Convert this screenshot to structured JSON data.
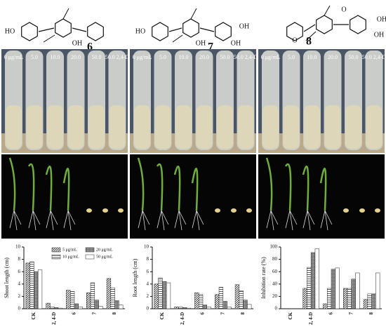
{
  "structures": [
    {
      "number": "6",
      "labels": [
        "HO",
        "OH"
      ]
    },
    {
      "number": "7",
      "labels": [
        "HO",
        "OH",
        "OH",
        "OH"
      ]
    },
    {
      "number": "8",
      "labels": [
        "O",
        "OH",
        "OH",
        "O"
      ]
    }
  ],
  "tubes": {
    "labels": [
      "0 μg/mL",
      "5.0",
      "10.0",
      "20.0",
      "50.0",
      "50.0 2,4-D"
    ]
  },
  "chart_data": [
    {
      "type": "bar",
      "ylabel": "Shoot length (cm)",
      "categories": [
        "CK",
        "2, 4-D",
        "6",
        "7",
        "8"
      ],
      "ylim": [
        0,
        10
      ],
      "yticks": [
        0,
        2,
        4,
        6,
        8,
        10
      ],
      "legend": true,
      "series": [
        {
          "name": "5 μg/mL",
          "pattern": "diag",
          "values": [
            7.4,
            0.9,
            3.0,
            2.6,
            4.9
          ]
        },
        {
          "name": "10 μg/mL",
          "pattern": "hlines",
          "values": [
            7.6,
            0.3,
            2.8,
            4.2,
            3.4
          ]
        },
        {
          "name": "20 μg/mL",
          "pattern": "dense",
          "values": [
            6.0,
            0.2,
            0.8,
            1.4,
            1.3
          ]
        },
        {
          "name": "50 μg/mL",
          "pattern": "plain",
          "values": [
            6.3,
            0.1,
            0.3,
            0.4,
            0.6
          ]
        }
      ]
    },
    {
      "type": "bar",
      "ylabel": "Root length (cm)",
      "categories": [
        "CK",
        "2, 4-D",
        "6",
        "7",
        "8"
      ],
      "ylim": [
        0,
        10
      ],
      "yticks": [
        0,
        2,
        4,
        6,
        8,
        10
      ],
      "legend": false,
      "series": [
        {
          "pattern": "diag",
          "values": [
            4.0,
            0.3,
            2.6,
            2.3,
            3.9
          ]
        },
        {
          "pattern": "hlines",
          "values": [
            5.0,
            0.3,
            2.3,
            3.5,
            2.9
          ]
        },
        {
          "pattern": "dense",
          "values": [
            4.4,
            0.2,
            0.6,
            1.2,
            1.4
          ]
        },
        {
          "pattern": "plain",
          "values": [
            4.2,
            0.1,
            0.3,
            0.3,
            0.7
          ]
        }
      ]
    },
    {
      "type": "bar",
      "ylabel": "Inhibition rate (%)",
      "categories": [
        "CK",
        "2, 4-D",
        "6",
        "7",
        "8"
      ],
      "ylim": [
        0,
        100
      ],
      "yticks": [
        0,
        20,
        40,
        60,
        80,
        100
      ],
      "legend": false,
      "series": [
        {
          "pattern": "diag",
          "values": [
            0,
            33,
            8,
            33,
            15
          ]
        },
        {
          "pattern": "hlines",
          "values": [
            0,
            67,
            33,
            33,
            24
          ]
        },
        {
          "pattern": "dense",
          "values": [
            0,
            91,
            64,
            48,
            24
          ]
        },
        {
          "pattern": "plain",
          "values": [
            0,
            97,
            66,
            58,
            58
          ]
        }
      ]
    }
  ]
}
